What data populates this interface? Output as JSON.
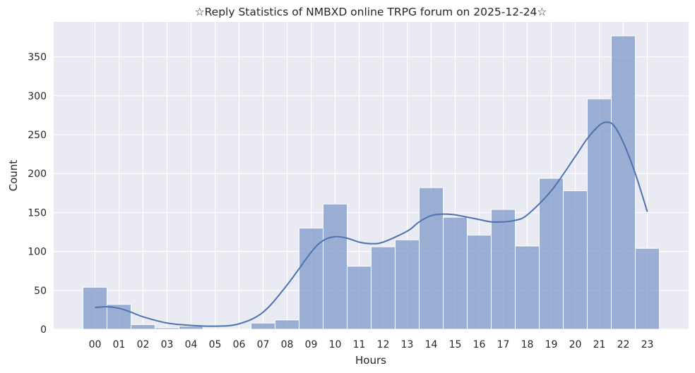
{
  "chart_data": {
    "type": "bar",
    "title": "☆Reply Statistics of NMBXD online TRPG forum on 2025-12-24☆",
    "xlabel": "Hours",
    "ylabel": "Count",
    "categories": [
      "00",
      "01",
      "02",
      "03",
      "04",
      "05",
      "06",
      "07",
      "08",
      "09",
      "10",
      "11",
      "12",
      "13",
      "14",
      "15",
      "16",
      "17",
      "18",
      "19",
      "20",
      "21",
      "22",
      "23"
    ],
    "values": [
      54,
      32,
      6,
      2,
      4,
      0,
      0,
      8,
      12,
      130,
      161,
      81,
      106,
      115,
      182,
      144,
      121,
      154,
      107,
      194,
      178,
      296,
      377,
      104
    ],
    "ylim": [
      0,
      395
    ],
    "yticks": [
      0,
      50,
      100,
      150,
      200,
      250,
      300,
      350
    ],
    "grid": true,
    "kde": {
      "x": [
        0,
        0.5,
        1,
        1.5,
        2,
        3,
        4,
        5,
        6,
        7,
        8,
        9,
        9.5,
        10,
        10.5,
        11,
        11.5,
        12,
        13,
        13.5,
        14,
        14.5,
        15,
        16,
        16.5,
        17,
        17.5,
        18,
        19,
        20,
        20.5,
        21,
        21.3,
        21.6,
        22,
        22.5,
        23
      ],
      "y": [
        28,
        29,
        27,
        22,
        16,
        8,
        5,
        4,
        7,
        22,
        57,
        99,
        114,
        119,
        117,
        112,
        110,
        112,
        126,
        138,
        146,
        148,
        147,
        141,
        138,
        138,
        140,
        147,
        178,
        222,
        245,
        262,
        266,
        262,
        240,
        200,
        151
      ]
    },
    "colors": {
      "bar": "#7f99c8",
      "bar_opacity": 0.75,
      "bar_edge": "#ffffff",
      "kde": "#4c72b0",
      "background": "#eaeaf2",
      "grid": "#ffffff"
    }
  }
}
